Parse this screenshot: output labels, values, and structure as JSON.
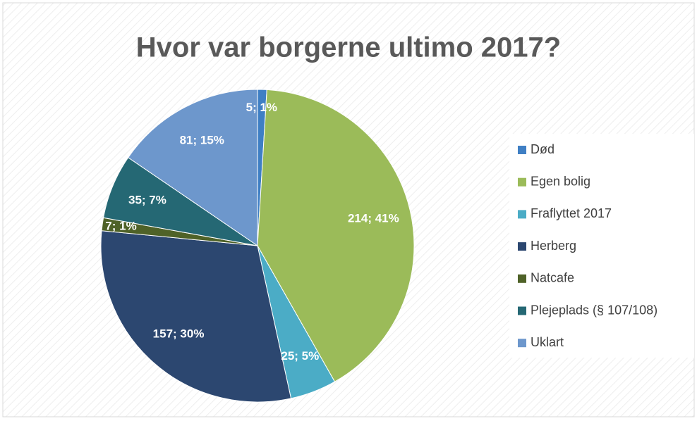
{
  "chart_data": {
    "type": "pie",
    "title": "Hvor var borgerne ultimo 2017?",
    "categories": [
      "Død",
      "Egen bolig",
      "Fraflyttet 2017",
      "Herberg",
      "Natcafe",
      "Plejeplads (§ 107/108)",
      "Uklart"
    ],
    "values": [
      5,
      214,
      25,
      157,
      7,
      35,
      81
    ],
    "value_labels": [
      "5; 1%",
      "214; 41%",
      "25; 5%",
      "157; 30%",
      "7; 1%",
      "35; 7%",
      "81; 15%"
    ],
    "colors": [
      "#3f7fc4",
      "#9bbb59",
      "#4bacc6",
      "#2c4770",
      "#4f6228",
      "#256874",
      "#6d97cc"
    ],
    "legend": "right"
  }
}
